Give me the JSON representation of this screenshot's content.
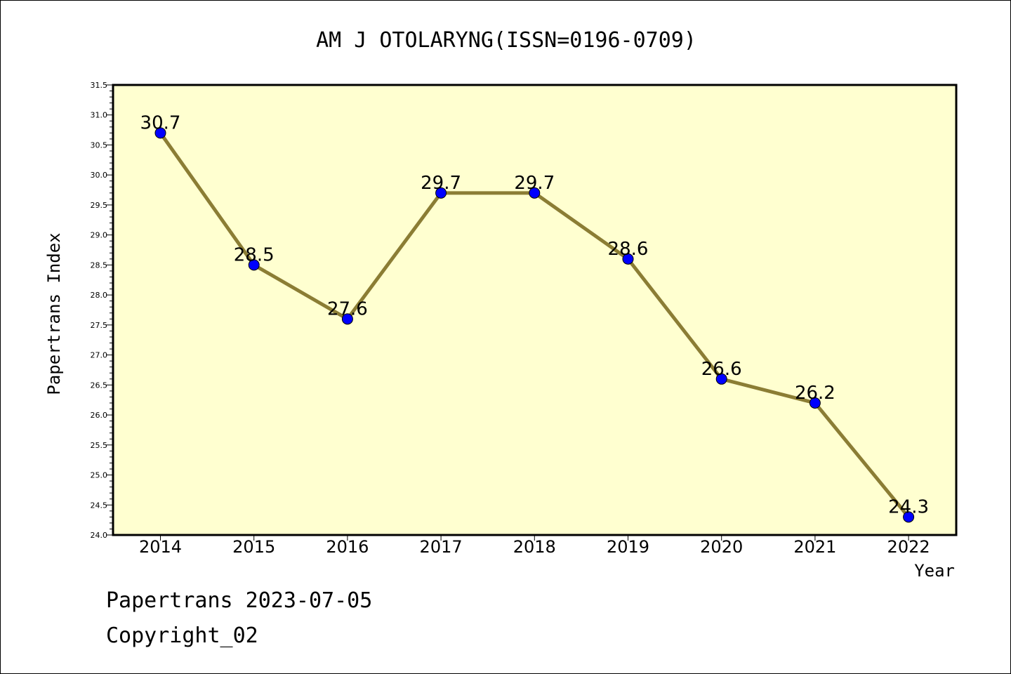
{
  "chart_data": {
    "type": "line",
    "title": "AM J OTOLARYNG(ISSN=0196-0709)",
    "xlabel": "Year",
    "ylabel": "Papertrans Index",
    "categories": [
      "2014",
      "2015",
      "2016",
      "2017",
      "2018",
      "2019",
      "2020",
      "2021",
      "2022"
    ],
    "series": [
      {
        "values": [
          30.7,
          28.5,
          27.6,
          29.7,
          29.7,
          28.6,
          26.6,
          26.2,
          24.3
        ],
        "data_labels": [
          "30.7",
          "28.5",
          "27.6",
          "29.7",
          "29.7",
          "28.6",
          "26.6",
          "26.2",
          "24.3"
        ],
        "line_color": "#8b7d34",
        "marker_color": "#0000ff"
      }
    ],
    "ylim": [
      24.0,
      31.5
    ],
    "yticks": [
      "24.0",
      "24.5",
      "25.0",
      "25.5",
      "26.0",
      "26.5",
      "27.0",
      "27.5",
      "28.0",
      "28.5",
      "29.0",
      "29.5",
      "30.0",
      "30.5",
      "31.0",
      "31.5"
    ],
    "grid": false,
    "plot_background": "#ffffd0",
    "footer_lines": [
      "Papertrans 2023-07-05",
      "Copyright_02"
    ]
  }
}
